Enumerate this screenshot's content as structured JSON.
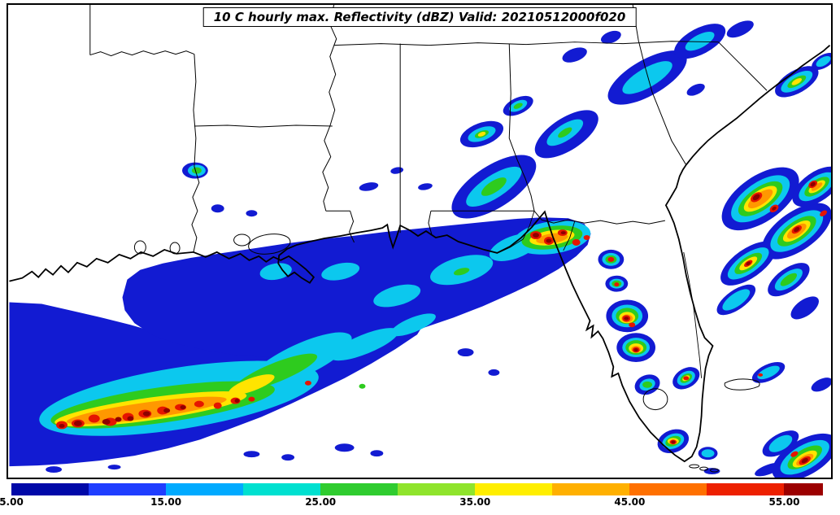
{
  "title": "10 C hourly max. Reflectivity (dBZ) Valid: 20210512000f020",
  "chart_data": {
    "type": "heatmap",
    "title": "10 C hourly max. Reflectivity (dBZ) Valid: 20210512000f020",
    "variable": "Hourly maximum radar reflectivity",
    "units": "dBZ",
    "valid_string": "20210512000f020",
    "region": "Southeastern United States, Gulf of Mexico and western Atlantic",
    "colorbar": {
      "min": 5,
      "max": 57.5,
      "ticks": [
        {
          "value": 5,
          "label": "5.00"
        },
        {
          "value": 15,
          "label": "15.00"
        },
        {
          "value": 25,
          "label": "25.00"
        },
        {
          "value": 35,
          "label": "35.00"
        },
        {
          "value": 45,
          "label": "45.00"
        },
        {
          "value": 55,
          "label": "55.00"
        }
      ],
      "segments": [
        {
          "from": 5,
          "to": 10,
          "color": "#0008a8"
        },
        {
          "from": 10,
          "to": 15,
          "color": "#1f3dff"
        },
        {
          "from": 15,
          "to": 20,
          "color": "#00aaff"
        },
        {
          "from": 20,
          "to": 25,
          "color": "#00e0d0"
        },
        {
          "from": 25,
          "to": 30,
          "color": "#2fcc2f"
        },
        {
          "from": 30,
          "to": 35,
          "color": "#8fe42c"
        },
        {
          "from": 35,
          "to": 40,
          "color": "#ffee00"
        },
        {
          "from": 40,
          "to": 45,
          "color": "#ffb000"
        },
        {
          "from": 45,
          "to": 50,
          "color": "#ff7000"
        },
        {
          "from": 50,
          "to": 55,
          "color": "#ed2000"
        },
        {
          "from": 55,
          "to": 57.5,
          "color": "#9c0000"
        }
      ]
    },
    "field_colors": {
      "blue": "#121bd2",
      "cyan": "#0cc8ee",
      "green": "#2ecb1e",
      "yellow": "#ffe400",
      "orange": "#ff9800",
      "red": "#e51500",
      "darkred": "#8f0000"
    },
    "features": [
      {
        "area": "Squall line along the Texas/Louisiana Gulf coast (southwest corner)",
        "orientation": "SW-NE",
        "max_dbz": 57
      },
      {
        "area": "Broad stratiform shield over Louisiana, Mississippi, Alabama and the northern Gulf",
        "max_dbz": 25
      },
      {
        "area": "Convective cluster over southwest Georgia / Apalachee Bay",
        "max_dbz": 57
      },
      {
        "area": "Chain of strong cells along the Florida east coast from Cape Canaveral to Miami",
        "max_dbz": 55
      },
      {
        "area": "Intense offshore Atlantic cluster east of Georgia and north Florida",
        "max_dbz": 57
      },
      {
        "area": "Narrow band from Alabama northeastward across Georgia and the Carolinas",
        "max_dbz": 30
      },
      {
        "area": "Strong cell near the Bahamas (bottom right)",
        "max_dbz": 57
      }
    ]
  }
}
